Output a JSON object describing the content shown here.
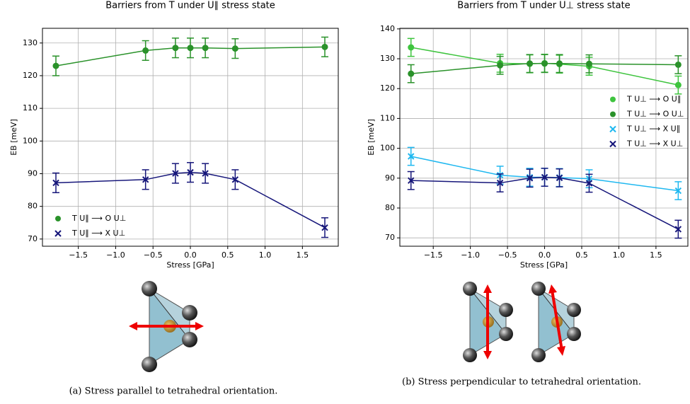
{
  "chart_data": [
    {
      "type": "line",
      "title": "Barriers from T under U∥ stress state",
      "xlabel": "Stress [GPa]",
      "ylabel": "EB [meV]",
      "x": [
        -1.8,
        -0.6,
        -0.2,
        0,
        0.2,
        0.6,
        1.8
      ],
      "series": [
        {
          "name": "T U∥ ⟶ O U⊥",
          "color": "#2a922a",
          "marker": "o",
          "values": [
            123,
            127.7,
            128.5,
            128.5,
            128.5,
            128.3,
            128.8
          ],
          "errors": [
            3,
            3,
            3,
            3,
            3,
            3,
            3
          ]
        },
        {
          "name": "T U∥ ⟶ X U⊥",
          "color": "#16167a",
          "marker": "x",
          "values": [
            87.2,
            88.2,
            90.1,
            90.4,
            90.1,
            88.2,
            73.5
          ],
          "errors": [
            3,
            3,
            3,
            3,
            3,
            3,
            3
          ]
        }
      ],
      "xlim": [
        -1.98,
        1.98
      ],
      "ylim": [
        67.8,
        134.5
      ],
      "xticks": [
        {
          "value": -1.5,
          "label": "−1.5"
        },
        {
          "value": -1.0,
          "label": "−1.0"
        },
        {
          "value": -0.5,
          "label": "−0.5"
        },
        {
          "value": 0,
          "label": "0.0"
        },
        0.5,
        {
          "value": 1.0,
          "label": "1.0"
        },
        1.5
      ],
      "yticks": [
        70,
        80,
        90,
        100,
        110,
        120,
        130
      ],
      "grid": true,
      "legend": "lower left"
    },
    {
      "type": "line",
      "title": "Barriers from T under U⊥ stress state",
      "xlabel": "Stress [GPa]",
      "ylabel": "EB [meV]",
      "x": [
        -1.8,
        -0.6,
        -0.2,
        0,
        0.2,
        0.6,
        1.8
      ],
      "series": [
        {
          "name": "T U⊥ ⟶ O U∥",
          "color": "#3ec43e",
          "marker": "o",
          "values": [
            133.8,
            128.5,
            128.3,
            128.5,
            128.2,
            127.5,
            121.2
          ],
          "errors": [
            3,
            3,
            3,
            3,
            3,
            3,
            3
          ]
        },
        {
          "name": "T U⊥ ⟶ O U⊥",
          "color": "#2a922a",
          "marker": "o",
          "values": [
            125,
            127.8,
            128.4,
            128.4,
            128.4,
            128.3,
            128
          ],
          "errors": [
            3,
            3,
            3,
            3,
            3,
            3,
            3
          ]
        },
        {
          "name": "T U⊥ ⟶ X U∥",
          "color": "#1fb8f0",
          "marker": "x",
          "values": [
            97.3,
            91,
            90.3,
            90.3,
            90.2,
            89.8,
            85.8
          ],
          "errors": [
            3,
            3,
            3,
            3,
            3,
            3,
            3
          ]
        },
        {
          "name": "T U⊥ ⟶ X U⊥",
          "color": "#16167a",
          "marker": "x",
          "values": [
            89.2,
            88.4,
            90,
            90.3,
            90.1,
            88.3,
            72.9
          ],
          "errors": [
            3,
            3,
            3,
            3,
            3,
            3,
            3
          ]
        }
      ],
      "xlim": [
        -1.95,
        1.93
      ],
      "ylim": [
        67.2,
        140.2
      ],
      "xticks": [
        {
          "value": -1.5,
          "label": "−1.5"
        },
        {
          "value": -1.0,
          "label": "−1.0"
        },
        {
          "value": -0.5,
          "label": "−0.5"
        },
        {
          "value": 0,
          "label": "0.0"
        },
        0.5,
        {
          "value": 1.0,
          "label": "1.0"
        },
        1.5
      ],
      "yticks": [
        70,
        80,
        90,
        100,
        110,
        120,
        130,
        140
      ],
      "grid": true,
      "legend": "center right"
    }
  ],
  "captions": [
    "(a) Stress parallel to tetrahedral orientation.",
    "(b) Stress perpendicular to tetrahedral orientation."
  ]
}
